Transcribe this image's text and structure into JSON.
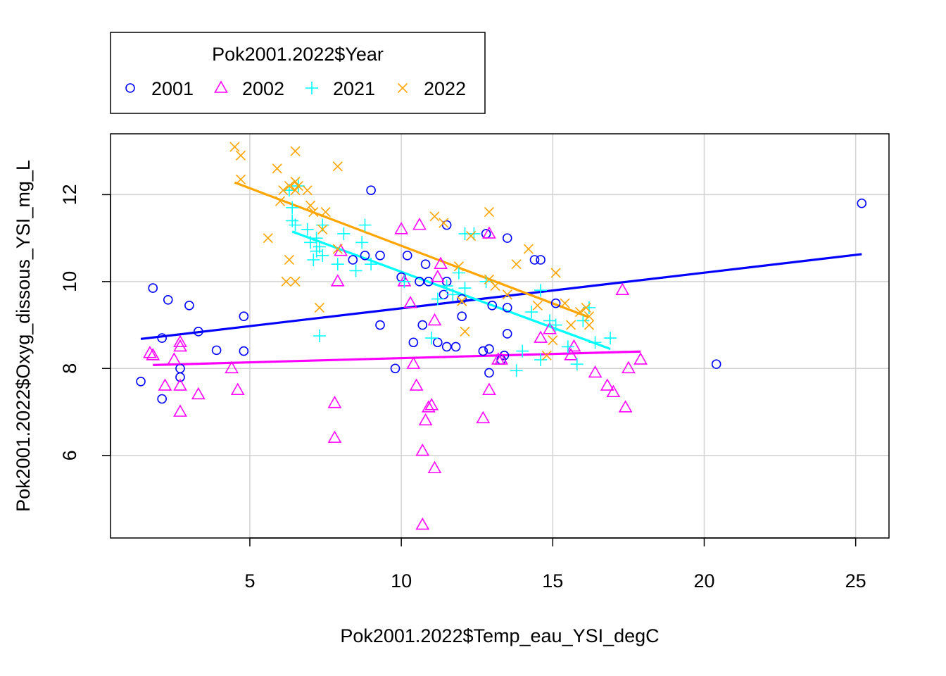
{
  "chart_data": {
    "type": "scatter",
    "title": "",
    "xlabel": "Pok2001.2022$Temp_eau_YSI_degC",
    "ylabel": "Pok2001.2022$Oxyg_dissous_YSI_mg_L",
    "xlim": [
      0.4,
      26.1
    ],
    "ylim": [
      4.1,
      13.4
    ],
    "x_ticks": [
      5,
      10,
      15,
      20,
      25
    ],
    "y_ticks": [
      6,
      8,
      10,
      12
    ],
    "grid": true,
    "legend": {
      "title": "Pok2001.2022$Year",
      "placement": "top-left"
    },
    "series": [
      {
        "name": "2001",
        "marker": "circle",
        "color": "#0000ff",
        "fit": {
          "x": [
            1.4,
            25.2
          ],
          "y": [
            8.68,
            10.63
          ]
        },
        "points": [
          [
            1.4,
            7.7
          ],
          [
            1.8,
            9.85
          ],
          [
            2.1,
            8.7
          ],
          [
            2.1,
            7.3
          ],
          [
            2.3,
            9.58
          ],
          [
            2.7,
            8.0
          ],
          [
            2.7,
            7.8
          ],
          [
            3.0,
            9.45
          ],
          [
            3.3,
            8.85
          ],
          [
            3.9,
            8.42
          ],
          [
            4.8,
            9.2
          ],
          [
            4.8,
            8.4
          ],
          [
            8.4,
            10.5
          ],
          [
            8.8,
            10.6
          ],
          [
            9.0,
            12.1
          ],
          [
            9.3,
            10.6
          ],
          [
            9.3,
            9.0
          ],
          [
            9.8,
            8.0
          ],
          [
            10.0,
            10.1
          ],
          [
            10.2,
            10.6
          ],
          [
            10.4,
            8.6
          ],
          [
            10.6,
            10.0
          ],
          [
            10.7,
            9.0
          ],
          [
            10.8,
            10.4
          ],
          [
            10.9,
            10.0
          ],
          [
            11.2,
            8.6
          ],
          [
            11.4,
            9.7
          ],
          [
            11.5,
            11.3
          ],
          [
            11.5,
            10.0
          ],
          [
            11.5,
            8.5
          ],
          [
            11.8,
            8.5
          ],
          [
            12.0,
            9.6
          ],
          [
            12.0,
            9.2
          ],
          [
            12.7,
            8.4
          ],
          [
            12.8,
            11.1
          ],
          [
            12.9,
            8.45
          ],
          [
            12.9,
            7.9
          ],
          [
            13.0,
            9.45
          ],
          [
            13.3,
            8.2
          ],
          [
            13.4,
            8.3
          ],
          [
            13.5,
            11.0
          ],
          [
            13.5,
            9.4
          ],
          [
            13.5,
            8.8
          ],
          [
            14.4,
            10.5
          ],
          [
            14.6,
            10.5
          ],
          [
            15.1,
            9.5
          ],
          [
            20.4,
            8.1
          ],
          [
            25.2,
            11.8
          ]
        ]
      },
      {
        "name": "2002",
        "marker": "triangle",
        "color": "#ff00ff",
        "fit": {
          "x": [
            1.8,
            17.9
          ],
          "y": [
            8.08,
            8.39
          ]
        },
        "points": [
          [
            1.7,
            8.35
          ],
          [
            1.8,
            8.3
          ],
          [
            2.2,
            7.6
          ],
          [
            2.5,
            8.2
          ],
          [
            2.7,
            8.6
          ],
          [
            2.7,
            8.5
          ],
          [
            2.7,
            7.6
          ],
          [
            2.7,
            7.0
          ],
          [
            3.3,
            7.4
          ],
          [
            4.4,
            8.0
          ],
          [
            4.6,
            7.5
          ],
          [
            7.8,
            7.2
          ],
          [
            7.8,
            6.4
          ],
          [
            7.9,
            10.0
          ],
          [
            8.0,
            10.7
          ],
          [
            10.0,
            11.2
          ],
          [
            10.1,
            10.0
          ],
          [
            10.3,
            9.5
          ],
          [
            10.4,
            8.1
          ],
          [
            10.5,
            7.6
          ],
          [
            10.6,
            11.3
          ],
          [
            10.7,
            6.1
          ],
          [
            10.7,
            4.4
          ],
          [
            10.8,
            6.8
          ],
          [
            10.9,
            7.1
          ],
          [
            11.0,
            7.15
          ],
          [
            11.1,
            9.1
          ],
          [
            11.1,
            5.7
          ],
          [
            11.2,
            10.1
          ],
          [
            11.3,
            10.4
          ],
          [
            12.7,
            6.85
          ],
          [
            12.9,
            11.1
          ],
          [
            12.9,
            7.5
          ],
          [
            13.2,
            8.2
          ],
          [
            13.3,
            8.2
          ],
          [
            14.6,
            8.7
          ],
          [
            14.9,
            8.9
          ],
          [
            15.6,
            8.3
          ],
          [
            15.7,
            8.5
          ],
          [
            16.4,
            7.9
          ],
          [
            16.8,
            7.6
          ],
          [
            17.0,
            7.45
          ],
          [
            17.3,
            9.8
          ],
          [
            17.4,
            7.1
          ],
          [
            17.5,
            8.0
          ],
          [
            17.9,
            8.2
          ]
        ]
      },
      {
        "name": "2021",
        "marker": "plus",
        "color": "#00ffff",
        "fit": {
          "x": [
            6.4,
            16.9
          ],
          "y": [
            11.15,
            8.45
          ]
        },
        "points": [
          [
            6.3,
            12.1
          ],
          [
            6.4,
            11.7
          ],
          [
            6.4,
            11.4
          ],
          [
            6.5,
            11.3
          ],
          [
            6.6,
            12.2
          ],
          [
            6.9,
            11.2
          ],
          [
            7.0,
            10.9
          ],
          [
            7.1,
            10.5
          ],
          [
            7.2,
            11.0
          ],
          [
            7.2,
            10.7
          ],
          [
            7.3,
            10.8
          ],
          [
            7.3,
            8.75
          ],
          [
            7.4,
            11.3
          ],
          [
            7.4,
            10.6
          ],
          [
            7.9,
            10.4
          ],
          [
            8.1,
            11.1
          ],
          [
            8.5,
            10.25
          ],
          [
            8.7,
            10.9
          ],
          [
            8.8,
            11.3
          ],
          [
            9.0,
            10.4
          ],
          [
            10.1,
            10.0
          ],
          [
            11.0,
            8.7
          ],
          [
            11.2,
            9.6
          ],
          [
            11.5,
            9.9
          ],
          [
            11.7,
            9.7
          ],
          [
            11.9,
            10.2
          ],
          [
            12.1,
            9.85
          ],
          [
            12.1,
            11.1
          ],
          [
            12.4,
            11.1
          ],
          [
            12.8,
            10.0
          ],
          [
            13.8,
            7.95
          ],
          [
            14.0,
            8.4
          ],
          [
            14.3,
            9.3
          ],
          [
            14.6,
            9.8
          ],
          [
            14.6,
            8.2
          ],
          [
            14.9,
            9.1
          ],
          [
            15.1,
            9.0
          ],
          [
            15.5,
            8.5
          ],
          [
            15.8,
            8.1
          ],
          [
            16.0,
            9.1
          ],
          [
            16.2,
            9.4
          ],
          [
            16.4,
            8.6
          ],
          [
            16.9,
            8.7
          ]
        ]
      },
      {
        "name": "2022",
        "marker": "cross",
        "color": "#ffa500",
        "fit": {
          "x": [
            4.5,
            16.2
          ],
          "y": [
            12.28,
            9.18
          ]
        },
        "points": [
          [
            4.5,
            13.1
          ],
          [
            4.7,
            12.9
          ],
          [
            4.7,
            12.35
          ],
          [
            5.6,
            11.0
          ],
          [
            5.9,
            12.6
          ],
          [
            6.0,
            11.85
          ],
          [
            6.1,
            12.1
          ],
          [
            6.2,
            10.0
          ],
          [
            6.3,
            10.5
          ],
          [
            6.3,
            12.2
          ],
          [
            6.5,
            13.0
          ],
          [
            6.5,
            12.3
          ],
          [
            6.5,
            12.1
          ],
          [
            6.5,
            10.0
          ],
          [
            6.6,
            12.2
          ],
          [
            6.9,
            12.1
          ],
          [
            7.0,
            11.75
          ],
          [
            7.1,
            11.6
          ],
          [
            7.3,
            9.4
          ],
          [
            7.4,
            11.2
          ],
          [
            7.5,
            11.6
          ],
          [
            7.9,
            12.65
          ],
          [
            7.9,
            10.75
          ],
          [
            11.1,
            11.5
          ],
          [
            11.4,
            11.35
          ],
          [
            11.9,
            10.35
          ],
          [
            12.0,
            9.55
          ],
          [
            12.1,
            8.85
          ],
          [
            12.3,
            11.05
          ],
          [
            12.9,
            11.6
          ],
          [
            12.9,
            10.05
          ],
          [
            13.1,
            9.9
          ],
          [
            13.5,
            9.7
          ],
          [
            13.8,
            10.4
          ],
          [
            14.2,
            10.75
          ],
          [
            14.5,
            9.45
          ],
          [
            14.8,
            8.3
          ],
          [
            15.0,
            8.65
          ],
          [
            15.1,
            10.2
          ],
          [
            15.4,
            9.5
          ],
          [
            15.6,
            9.0
          ],
          [
            15.9,
            9.3
          ],
          [
            16.1,
            9.4
          ],
          [
            16.2,
            9.0
          ],
          [
            16.2,
            9.2
          ]
        ]
      }
    ]
  }
}
